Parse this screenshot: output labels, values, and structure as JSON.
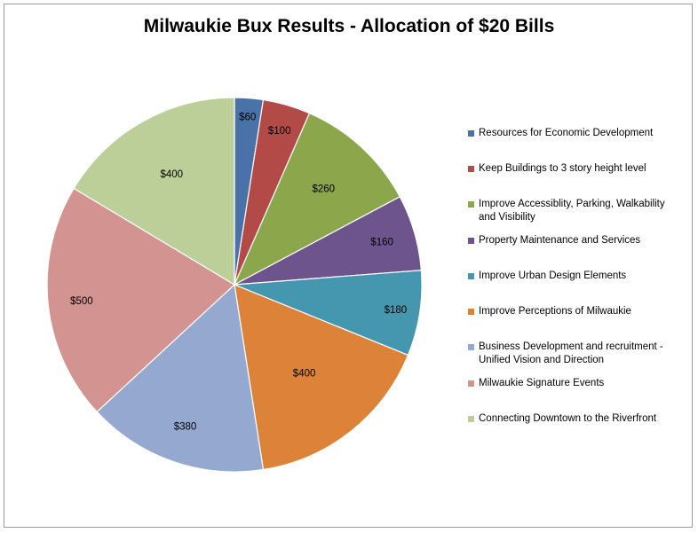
{
  "chart_data": {
    "type": "pie",
    "title": "Milwaukie Bux Results - Allocation of $20 Bills",
    "legend_position": "right",
    "slices": [
      {
        "name": "Resources for Economic Development",
        "value": 60,
        "label": "$60",
        "color": "#4a72a8"
      },
      {
        "name": "Keep Buildings to 3 story height level",
        "value": 100,
        "label": "$100",
        "color": "#b24a47"
      },
      {
        "name": "Improve Accessiblity, Parking, Walkability and Visibility",
        "value": 260,
        "label": "$260",
        "color": "#8ca64c"
      },
      {
        "name": "Property Maintenance and Services",
        "value": 160,
        "label": "$160",
        "color": "#6e548c"
      },
      {
        "name": "Improve Urban Design Elements",
        "value": 180,
        "label": "$180",
        "color": "#4497ae"
      },
      {
        "name": "Improve Perceptions of Milwaukie",
        "value": 400,
        "label": "$400",
        "color": "#dc8339"
      },
      {
        "name": "Business Development and recruitment - Unified Vision and Direction",
        "value": 380,
        "label": "$380",
        "color": "#95a9d0"
      },
      {
        "name": "Milwaukie Signature Events",
        "value": 500,
        "label": "$500",
        "color": "#d39391"
      },
      {
        "name": "Connecting Downtown to the Riverfront",
        "value": 400,
        "label": "$400",
        "color": "#bccf98"
      }
    ]
  }
}
